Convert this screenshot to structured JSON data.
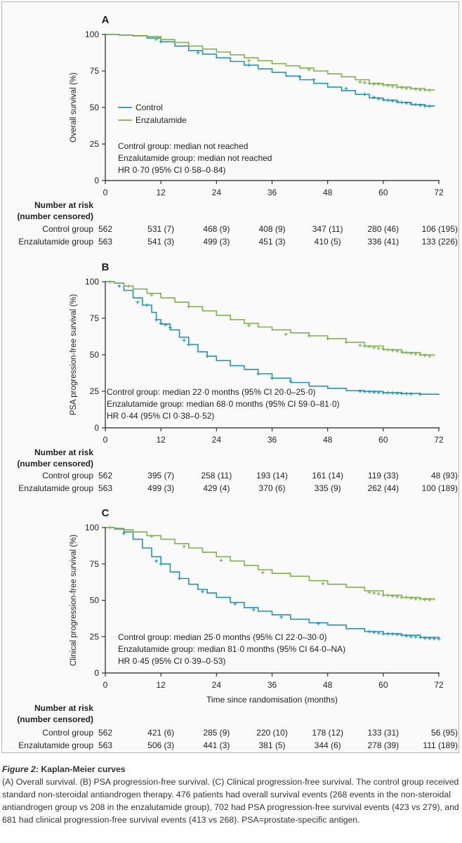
{
  "colors": {
    "control": "#1e95b8",
    "enzalutamide": "#7db347",
    "text": "#222222"
  },
  "x_ticks": [
    "0",
    "12",
    "24",
    "36",
    "48",
    "60",
    "72"
  ],
  "y_ticks": [
    "0",
    "25",
    "50",
    "75",
    "100"
  ],
  "number_at_risk_heading": [
    "Number at risk",
    "(number censored)"
  ],
  "risk_row_labels": [
    "Control group",
    "Enzalutamide group"
  ],
  "legend": {
    "control": "Control",
    "enzalutamide": "Enzalutamide"
  },
  "x_axis_title": "Time since randomisation (months)",
  "chart_data": [
    {
      "type": "line",
      "panel": "A",
      "ylabel": "Overall survival (%)",
      "xlim": [
        0,
        72
      ],
      "ylim": [
        0,
        100
      ],
      "x_ticks": [
        0,
        12,
        24,
        36,
        48,
        60,
        72
      ],
      "y_ticks": [
        0,
        25,
        50,
        75,
        100
      ],
      "legend_entries": [
        "Control",
        "Enzalutamide"
      ],
      "legend_position": "middle-left",
      "annotations": [
        "Control group: median not reached",
        "Enzalutamide group: median not reached",
        "HR 0·70 (95% CI 0·58–0·84)"
      ],
      "series": [
        {
          "name": "Control",
          "color": "#1e95b8",
          "x": [
            0,
            3,
            6,
            9,
            12,
            15,
            18,
            21,
            24,
            27,
            30,
            33,
            36,
            39,
            42,
            45,
            48,
            51,
            54,
            57,
            60,
            63,
            66,
            69,
            71
          ],
          "y": [
            100,
            99.5,
            99,
            97.5,
            95,
            92,
            89,
            86.5,
            84,
            81.5,
            79,
            76.5,
            74,
            71.5,
            69,
            66.5,
            64,
            61.5,
            59,
            56.5,
            55,
            53.5,
            52,
            51,
            50.5
          ],
          "censor_x": [
            12,
            20,
            31,
            42,
            45,
            52,
            56,
            58,
            59,
            60,
            61,
            62,
            63,
            64,
            65,
            66,
            67,
            68,
            69,
            70
          ],
          "censor_y": [
            95,
            87.5,
            79,
            71,
            69,
            63,
            59,
            57,
            56,
            55.5,
            55,
            54.5,
            54,
            53.5,
            53,
            52.5,
            52,
            51.5,
            51,
            50.8
          ]
        },
        {
          "name": "Enzalutamide",
          "color": "#7db347",
          "x": [
            0,
            3,
            6,
            9,
            12,
            15,
            18,
            21,
            24,
            27,
            30,
            33,
            36,
            39,
            42,
            45,
            48,
            51,
            54,
            57,
            60,
            63,
            66,
            69,
            71
          ],
          "y": [
            100,
            99.6,
            99.2,
            98.5,
            96.5,
            94.5,
            92,
            90,
            88,
            86,
            84,
            82,
            80,
            78.5,
            77,
            75,
            73,
            71,
            69,
            66.5,
            65.5,
            64,
            63,
            62,
            61.5
          ],
          "censor_x": [
            11,
            31,
            44,
            55,
            56,
            57,
            58,
            59,
            60,
            61,
            62,
            63,
            64,
            65,
            66,
            67,
            68,
            69,
            70
          ],
          "censor_y": [
            96.5,
            82,
            76,
            67.5,
            67,
            66.5,
            66,
            66,
            65.5,
            65,
            64.5,
            64,
            63.5,
            63,
            63,
            62.5,
            62,
            62,
            61.8
          ]
        }
      ],
      "risk_table": {
        "x": [
          0,
          12,
          24,
          36,
          48,
          60,
          72
        ],
        "control": [
          "562",
          "531 (7)",
          "468 (9)",
          "408 (9)",
          "347 (11)",
          "280 (46)",
          "106 (195)"
        ],
        "enzalutamide": [
          "563",
          "541 (3)",
          "499 (3)",
          "451 (3)",
          "410 (5)",
          "336 (41)",
          "133 (226)"
        ]
      }
    },
    {
      "type": "line",
      "panel": "B",
      "ylabel": "PSA progression-free survival (%)",
      "xlim": [
        0,
        72
      ],
      "ylim": [
        0,
        100
      ],
      "x_ticks": [
        0,
        12,
        24,
        36,
        48,
        60,
        72
      ],
      "y_ticks": [
        0,
        25,
        50,
        75,
        100
      ],
      "annotations": [
        "Control group: median 22·0 months (95% CI 20·0–25·0)",
        "Enzalutamide group: median 68·0 months (95% CI 59·0–81·0)",
        "HR 0·44 (95% CI 0·38–0·52)"
      ],
      "series": [
        {
          "name": "Control",
          "color": "#1e95b8",
          "x": [
            0,
            2,
            4,
            6,
            8,
            10,
            11,
            12,
            14,
            16,
            18,
            20,
            22,
            24,
            27,
            30,
            33,
            36,
            40,
            44,
            48,
            52,
            56,
            60,
            64,
            68,
            72
          ],
          "y": [
            100,
            99,
            94,
            89,
            84,
            79,
            74,
            71,
            67,
            62,
            57,
            52,
            49,
            46,
            42.5,
            40,
            37,
            34,
            31,
            28.5,
            27,
            25.5,
            25,
            24,
            23.5,
            23,
            22.5
          ],
          "censor_x": [
            3,
            7,
            9,
            11,
            12,
            13,
            14,
            17,
            18,
            22,
            33,
            36,
            40,
            55,
            56,
            57,
            58,
            59,
            60,
            61,
            62,
            63,
            64,
            65,
            66,
            68
          ],
          "censor_y": [
            97,
            86,
            84,
            74,
            71.5,
            70.5,
            68.5,
            60,
            57,
            49,
            37,
            34,
            32,
            25,
            24.8,
            24.6,
            24.4,
            24.2,
            24,
            23.9,
            23.8,
            23.6,
            23.5,
            23.4,
            23.2,
            23
          ]
        },
        {
          "name": "Enzalutamide",
          "color": "#7db347",
          "x": [
            0,
            2,
            4,
            6,
            9,
            12,
            15,
            18,
            21,
            24,
            27,
            30,
            33,
            36,
            40,
            44,
            48,
            52,
            56,
            60,
            64,
            68,
            71
          ],
          "y": [
            100,
            99,
            97,
            95,
            92,
            89,
            86,
            83,
            80,
            77,
            74,
            71.5,
            69,
            67,
            65,
            63,
            61,
            58.5,
            56,
            53.5,
            51.5,
            50,
            49
          ],
          "censor_x": [
            1,
            5,
            10,
            18,
            31,
            39,
            44,
            48,
            52,
            55,
            56,
            57,
            58,
            59,
            60,
            61,
            62,
            63,
            64,
            65,
            66,
            67,
            68,
            69,
            70
          ],
          "censor_y": [
            100,
            97,
            91,
            83,
            70,
            64,
            63,
            61,
            58.5,
            56.5,
            56,
            55.5,
            55,
            54.5,
            54,
            53.5,
            53,
            52.5,
            52,
            51.5,
            51,
            50.5,
            50,
            49.5,
            49
          ]
        }
      ],
      "risk_table": {
        "x": [
          0,
          12,
          24,
          36,
          48,
          60,
          72
        ],
        "control": [
          "562",
          "395 (7)",
          "258 (11)",
          "193 (14)",
          "161 (14)",
          "119 (33)",
          "48 (93)"
        ],
        "enzalutamide": [
          "563",
          "499 (3)",
          "429 (4)",
          "370 (6)",
          "335 (9)",
          "262 (44)",
          "100 (189)"
        ]
      }
    },
    {
      "type": "line",
      "panel": "C",
      "ylabel": "Clinical progression-free survival (%)",
      "xlabel": "Time since randomisation (months)",
      "xlim": [
        0,
        72
      ],
      "ylim": [
        0,
        100
      ],
      "x_ticks": [
        0,
        12,
        24,
        36,
        48,
        60,
        72
      ],
      "y_ticks": [
        0,
        25,
        50,
        75,
        100
      ],
      "annotations": [
        "Control group: median 25·0 months (95% CI 22·0–30·0)",
        "Enzalutamide group: median 81·0 months (95% CI 64·0–NA)",
        "HR 0·45 (95% CI 0·39–0·53)"
      ],
      "series": [
        {
          "name": "Control",
          "color": "#1e95b8",
          "x": [
            0,
            2,
            4,
            6,
            8,
            10,
            12,
            14,
            16,
            18,
            20,
            22,
            24,
            27,
            30,
            33,
            36,
            40,
            44,
            48,
            52,
            56,
            60,
            64,
            68,
            72
          ],
          "y": [
            100,
            99,
            97,
            92,
            86,
            80,
            75,
            69.5,
            65,
            61,
            57.5,
            55,
            52,
            48.5,
            45,
            42.5,
            40,
            37,
            34.5,
            33,
            30.5,
            28.5,
            27,
            26,
            24.5,
            23.5
          ],
          "censor_x": [
            4,
            11,
            12,
            16,
            21,
            28,
            32,
            38,
            46,
            57,
            58,
            59,
            60,
            61,
            62,
            63,
            64,
            65,
            66,
            67,
            68,
            69,
            70,
            71,
            72
          ],
          "censor_y": [
            96,
            77,
            75,
            65,
            56,
            47.5,
            43.5,
            38.5,
            34,
            28.5,
            28,
            27.5,
            27,
            27,
            26.8,
            26.5,
            26,
            25.5,
            25,
            24.8,
            24.5,
            24,
            23.8,
            23.6,
            23.5
          ]
        },
        {
          "name": "Enzalutamide",
          "color": "#7db347",
          "x": [
            0,
            2,
            4,
            6,
            9,
            12,
            15,
            18,
            21,
            24,
            27,
            30,
            33,
            36,
            40,
            44,
            48,
            52,
            56,
            60,
            64,
            68,
            71
          ],
          "y": [
            100,
            99.5,
            98.5,
            97,
            94.5,
            92,
            89,
            86,
            83,
            80,
            77,
            74,
            71,
            68.5,
            66.5,
            63.5,
            61,
            59,
            56.5,
            53.5,
            52,
            51,
            50
          ],
          "censor_x": [
            1,
            6,
            10,
            17,
            25,
            34,
            47,
            57,
            58,
            59,
            60,
            61,
            62,
            63,
            64,
            65,
            66,
            67,
            68,
            69,
            70
          ],
          "censor_y": [
            100,
            97,
            94,
            87,
            77.5,
            69,
            61.5,
            55.5,
            55,
            54.5,
            53.5,
            53.5,
            53,
            52.5,
            52,
            52,
            51.5,
            51,
            51,
            50.5,
            50.3
          ]
        }
      ],
      "risk_table": {
        "x": [
          0,
          12,
          24,
          36,
          48,
          60,
          72
        ],
        "control": [
          "562",
          "421 (6)",
          "285 (9)",
          "220 (10)",
          "178 (12)",
          "133 (31)",
          "56 (95)"
        ],
        "enzalutamide": [
          "563",
          "506 (3)",
          "441 (3)",
          "381 (5)",
          "344 (6)",
          "278 (39)",
          "111 (189)"
        ]
      }
    }
  ],
  "caption": {
    "figure_label": "Figure 2:",
    "figure_title": "Kaplan-Meier curves",
    "text": "(A) Overall survival. (B) PSA progression-free survival. (C) Clinical progression-free survival. The control group received standard non-steroidal antiandrogen therapy. 476 patients had overall survival events (268 events in the non-steroidal antiandrogen group vs 208 in the enzalutamide group), 702 had PSA progression-free survival events (423 vs 279), and 681 had clinical progression-free survival events (413 vs 268). PSA=prostate-specific antigen."
  }
}
